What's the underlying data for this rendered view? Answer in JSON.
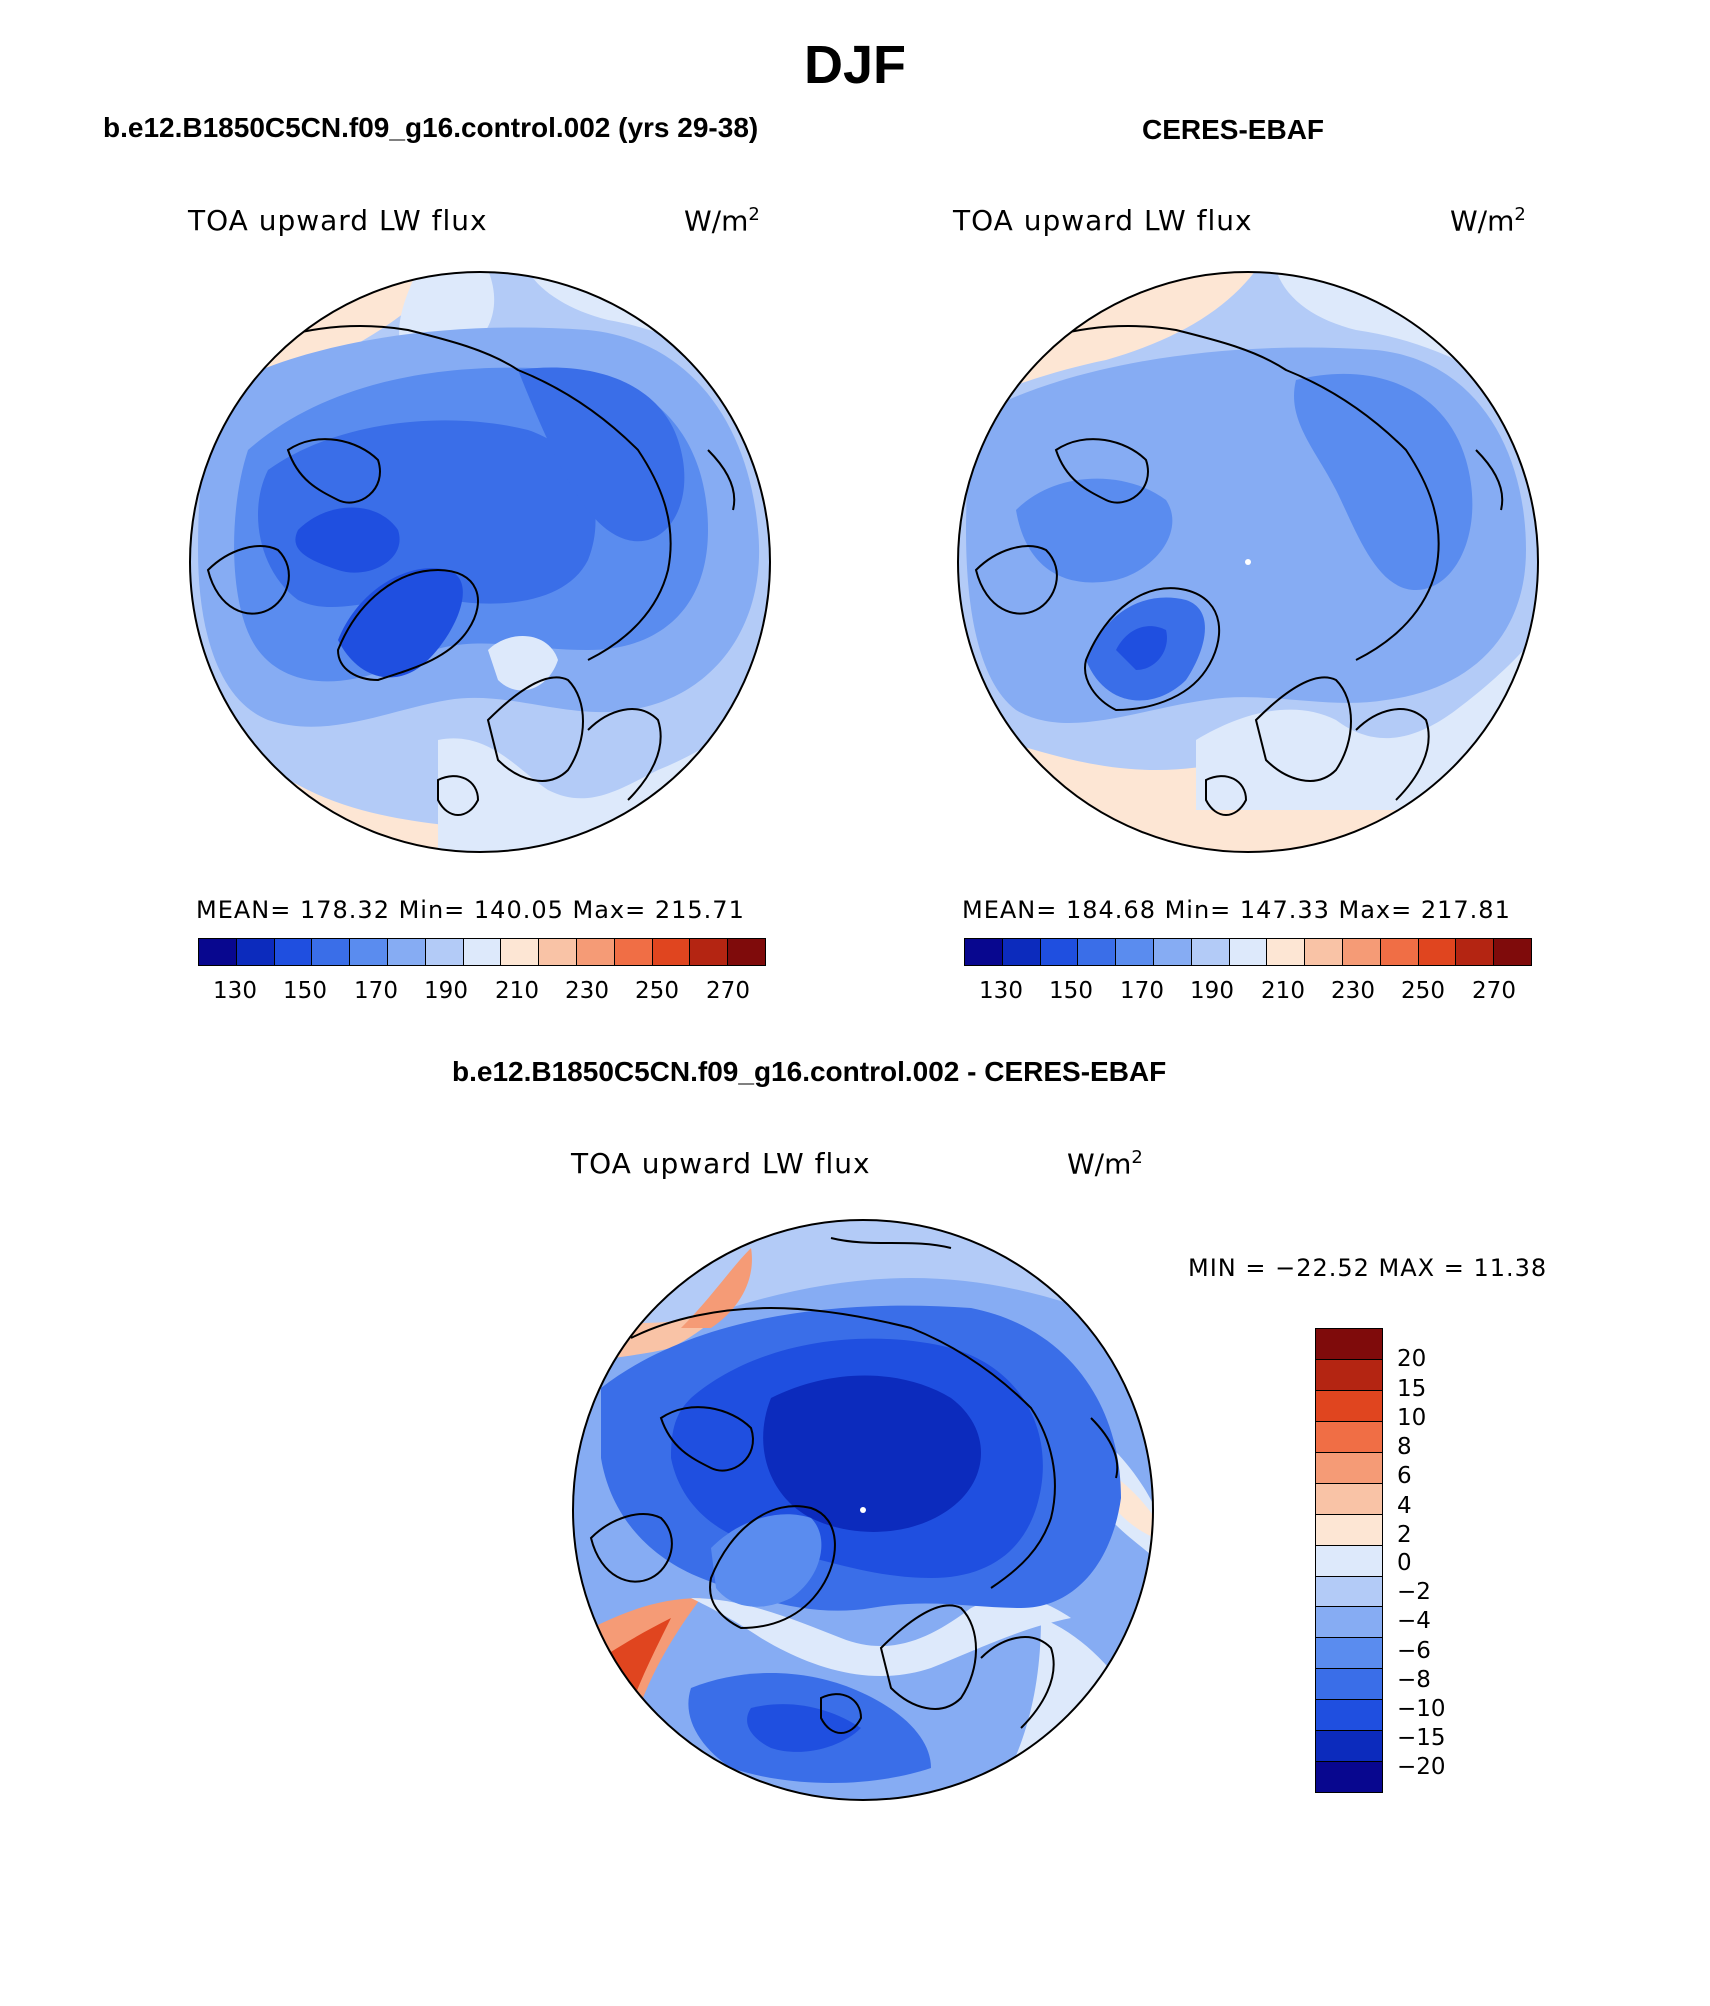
{
  "figure": {
    "title": "DJF"
  },
  "panel_left": {
    "title": "b.e12.B1850C5CN.f09_g16.control.002 (yrs 29-38)",
    "variable": "TOA upward LW flux",
    "unit_base": "W/m",
    "unit_exp": "2",
    "stats": "MEAN= 178.32   Min= 140.05   Max= 215.71",
    "colorbar_ticks": [
      "130",
      "150",
      "170",
      "190",
      "210",
      "230",
      "250",
      "270"
    ]
  },
  "panel_right": {
    "title": "CERES-EBAF",
    "variable": "TOA upward LW flux",
    "unit_base": "W/m",
    "unit_exp": "2",
    "stats": "MEAN= 184.68   Min= 147.33   Max= 217.81",
    "colorbar_ticks": [
      "130",
      "150",
      "170",
      "190",
      "210",
      "230",
      "250",
      "270"
    ]
  },
  "panel_diff": {
    "title": "b.e12.B1850C5CN.f09_g16.control.002 - CERES-EBAF",
    "variable": "TOA upward LW flux",
    "unit_base": "W/m",
    "unit_exp": "2",
    "minmax": "MIN = −22.52 MAX =   11.38",
    "colorbar_labels": [
      "20",
      "15",
      "10",
      "8",
      "6",
      "4",
      "2",
      "0",
      "−2",
      "−4",
      "−6",
      "−8",
      "−10",
      "−15",
      "−20"
    ]
  },
  "colors": {
    "scale": [
      "#08078f",
      "#0c2bbd",
      "#1f4fe0",
      "#3a6ee8",
      "#5a8cef",
      "#86acf3",
      "#b3cbf7",
      "#dde9fb",
      "#fde6d4",
      "#f9c3a6",
      "#f59b76",
      "#f06e45",
      "#e0451f",
      "#b42512",
      "#7f0b0b"
    ],
    "land_outline": "#000000"
  },
  "chart_data": [
    {
      "type": "heatmap",
      "projection": "north polar stereographic",
      "title": "TOA upward LW flux",
      "unit": "W/m2",
      "stats": {
        "mean": 178.32,
        "min": 140.05,
        "max": 215.71
      },
      "levels": [
        130,
        140,
        150,
        160,
        170,
        180,
        190,
        200,
        210,
        220,
        230,
        240,
        250,
        260,
        270
      ]
    },
    {
      "type": "heatmap",
      "projection": "north polar stereographic",
      "title": "TOA upward LW flux",
      "unit": "W/m2",
      "stats": {
        "mean": 184.68,
        "min": 147.33,
        "max": 217.81
      },
      "levels": [
        130,
        140,
        150,
        160,
        170,
        180,
        190,
        200,
        210,
        220,
        230,
        240,
        250,
        260,
        270
      ]
    },
    {
      "type": "heatmap",
      "projection": "north polar stereographic",
      "title": "TOA upward LW flux",
      "unit": "W/m2",
      "stats": {
        "min": -22.52,
        "max": 11.38
      },
      "levels": [
        -20,
        -15,
        -10,
        -8,
        -6,
        -4,
        -2,
        0,
        2,
        4,
        6,
        8,
        10,
        15,
        20
      ]
    }
  ]
}
